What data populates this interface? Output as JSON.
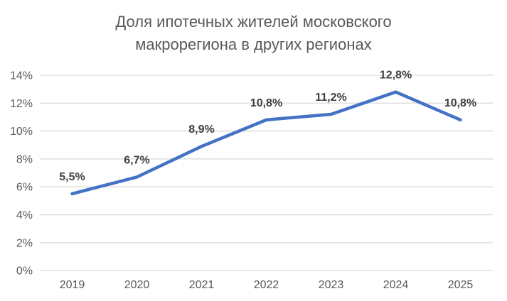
{
  "chart_data": {
    "type": "line",
    "title": "Доля ипотечных жителей московского макрорегиона в других регионах",
    "title_lines": [
      "Доля ипотечных жителей московского",
      "макрорегиона в других регионах"
    ],
    "categories": [
      "2019",
      "2020",
      "2021",
      "2022",
      "2023",
      "2024",
      "2025"
    ],
    "series": [
      {
        "name": "Доля ипотечных жителей московского макрорегиона в других регионах",
        "values": [
          5.5,
          6.7,
          8.9,
          10.8,
          11.2,
          12.8,
          10.8
        ]
      }
    ],
    "point_labels": [
      "5,5%",
      "6,7%",
      "8,9%",
      "10,8%",
      "11,2%",
      "12,8%",
      "10,8%"
    ],
    "xlabel": "",
    "ylabel": "",
    "ylim": [
      0,
      14
    ],
    "yticks": [
      {
        "value": 0,
        "label": "0%"
      },
      {
        "value": 2,
        "label": "2%"
      },
      {
        "value": 4,
        "label": "4%"
      },
      {
        "value": 6,
        "label": "6%"
      },
      {
        "value": 8,
        "label": "8%"
      },
      {
        "value": 10,
        "label": "10%"
      },
      {
        "value": 12,
        "label": "12%"
      },
      {
        "value": 14,
        "label": "14%"
      }
    ],
    "grid": "horizontal",
    "legend": "none",
    "markers": "none",
    "colors": {
      "line": "#4472C4",
      "grid": "#D9D9D9",
      "axis_labels": "#595959",
      "data_labels": "#404040",
      "title": "#595959",
      "background": "#FFFFFF"
    }
  }
}
